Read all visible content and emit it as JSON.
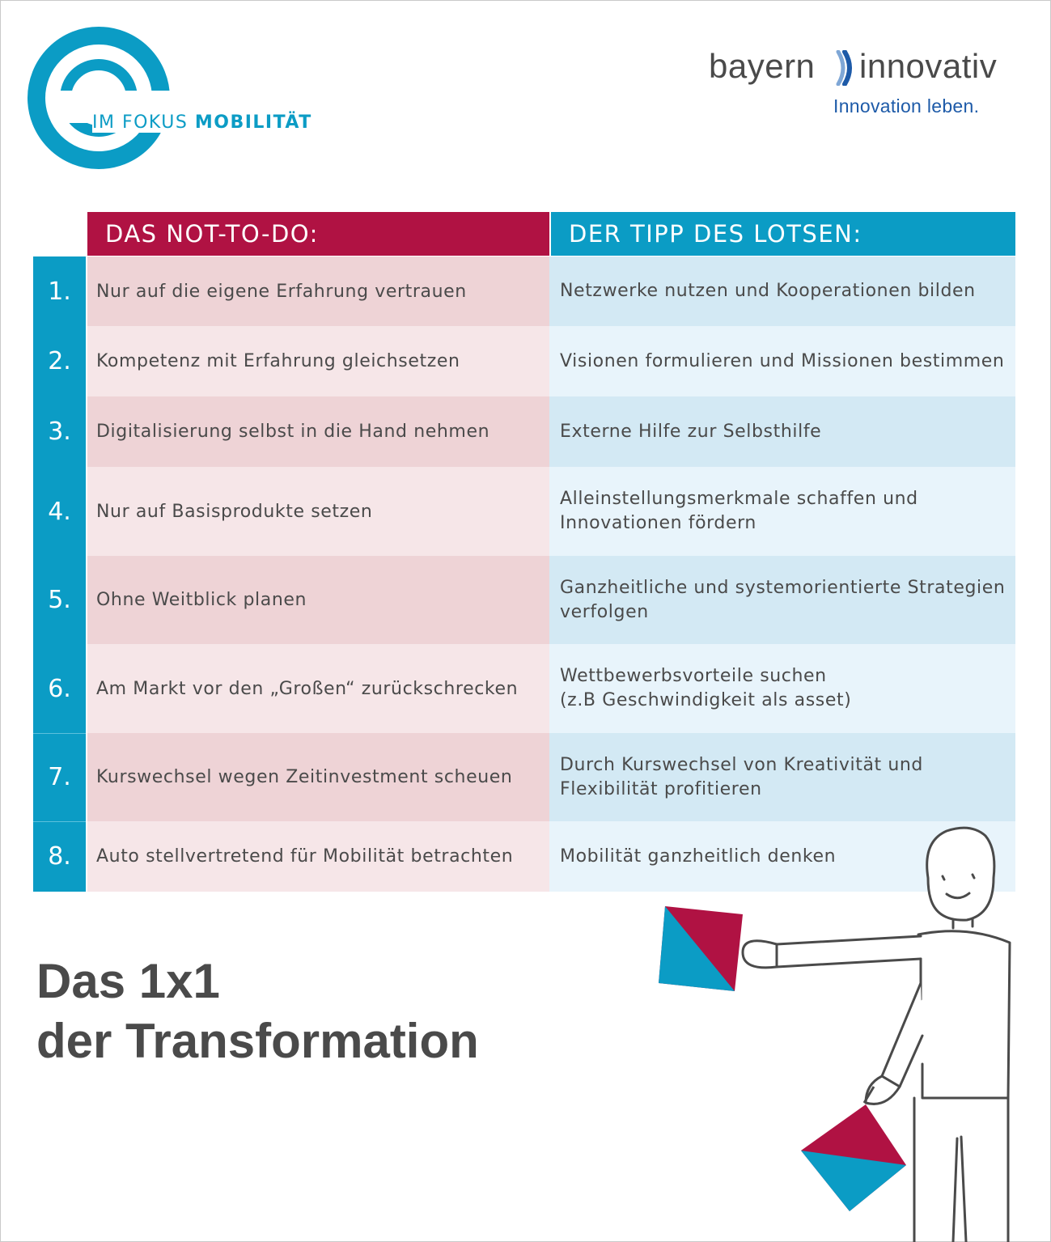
{
  "logo": {
    "prefix": "IM FOKUS",
    "highlight": "MOBILITÄT"
  },
  "brand": {
    "word_left": "bayern",
    "word_right": "innovativ",
    "tagline": "Innovation leben."
  },
  "table": {
    "header_left": "DAS NOT-TO-DO:",
    "header_right": "DER TIPP DES LOTSEN:",
    "rows": [
      {
        "number": "1.",
        "not_to_do": "Nur auf die eigene Erfahrung vertrauen",
        "tip": "Netzwerke nutzen und Kooperationen bilden"
      },
      {
        "number": "2.",
        "not_to_do": "Kompetenz mit Erfahrung gleichsetzen",
        "tip": "Visionen formulieren und Missionen bestimmen"
      },
      {
        "number": "3.",
        "not_to_do": "Digitalisierung selbst in die Hand nehmen",
        "tip": "Externe Hilfe zur Selbsthilfe"
      },
      {
        "number": "4.",
        "not_to_do": "Nur auf Basisprodukte setzen",
        "tip": "Alleinstellungsmerkmale schaffen und\nInnovationen fördern"
      },
      {
        "number": "5.",
        "not_to_do": "Ohne Weitblick planen",
        "tip": "Ganzheitliche und systemorientierte Strategien\nverfolgen"
      },
      {
        "number": "6.",
        "not_to_do": "Am Markt vor den „Großen“ zurückschrecken",
        "tip": "Wettbewerbsvorteile suchen\n(z.B Geschwindigkeit als asset)"
      },
      {
        "number": "7.",
        "not_to_do": "Kurswechsel wegen Zeitinvestment scheuen",
        "tip": "Durch Kurswechsel von Kreativität und\nFlexibilität profitieren"
      },
      {
        "number": "8.",
        "not_to_do": "Auto stellvertretend für Mobilität betrachten",
        "tip": "Mobilität ganzheitlich denken"
      }
    ]
  },
  "title": {
    "line1": "Das 1x1",
    "line2": "der Transformation"
  },
  "colors": {
    "blue": "#0b9cc5",
    "crimson": "#b01243",
    "text": "#4a4a4a",
    "brand_blue": "#1d5aa8"
  },
  "icons": {
    "logo": "ring-logo-icon",
    "brand": "bracket-mark-icon",
    "figure": "flag-signaler-illustration"
  }
}
